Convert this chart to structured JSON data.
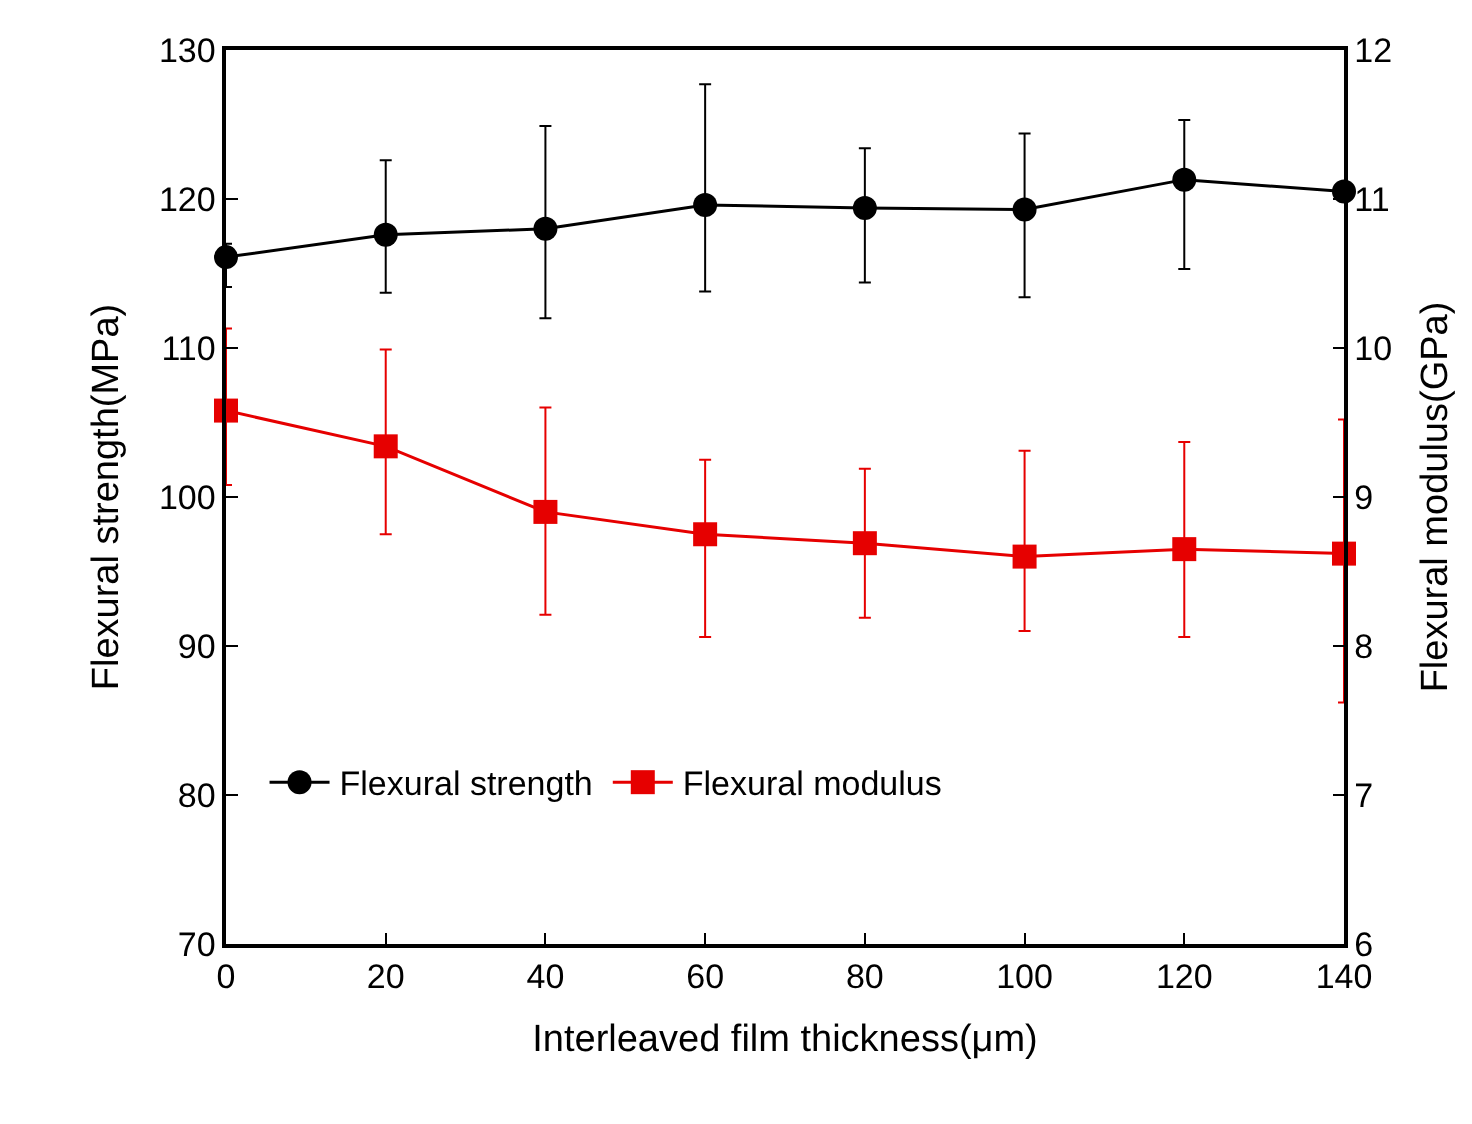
{
  "chart_data": {
    "type": "line",
    "xlabel": "Interleaved film thickness(μm)",
    "ylabel": "Flexural strength(MPa)",
    "y2label": "Flexural modulus(GPa)",
    "x": [
      0,
      20,
      40,
      60,
      80,
      100,
      120,
      140
    ],
    "xlim": [
      0,
      140
    ],
    "xticks": [
      0,
      20,
      40,
      60,
      80,
      100,
      120,
      140
    ],
    "ylim": [
      70,
      130
    ],
    "yticks": [
      70,
      80,
      90,
      100,
      110,
      120,
      130
    ],
    "y2lim": [
      6,
      12
    ],
    "y2ticks": [
      6,
      7,
      8,
      9,
      10,
      11,
      12
    ],
    "legend": "bottom left",
    "line_style": "solid",
    "series": [
      {
        "name": "Flexural strength",
        "color": "#000000",
        "marker": "circle",
        "values": [
          116.1,
          117.6,
          118.0,
          119.6,
          119.4,
          119.3,
          121.3,
          120.5
        ],
        "errors": [
          [
            114.1,
            117.0
          ],
          [
            113.7,
            122.6
          ],
          [
            112.0,
            124.9
          ],
          [
            113.8,
            127.7
          ],
          [
            114.4,
            123.4
          ],
          [
            113.4,
            124.4
          ],
          [
            115.3,
            125.3
          ],
          null
        ]
      },
      {
        "name": "Flexural modulus",
        "color": "#e60000",
        "marker": "square",
        "axis": "y2",
        "values": [
          9.58,
          9.34,
          8.9,
          8.75,
          8.69,
          8.6,
          8.65,
          8.62
        ],
        "errors": [
          [
            9.08,
            10.13
          ],
          [
            8.75,
            9.99
          ],
          [
            8.21,
            9.6
          ],
          [
            8.06,
            9.25
          ],
          [
            8.19,
            9.19
          ],
          [
            8.1,
            9.31
          ],
          [
            8.06,
            9.37
          ],
          [
            7.62,
            9.52
          ]
        ]
      }
    ]
  }
}
